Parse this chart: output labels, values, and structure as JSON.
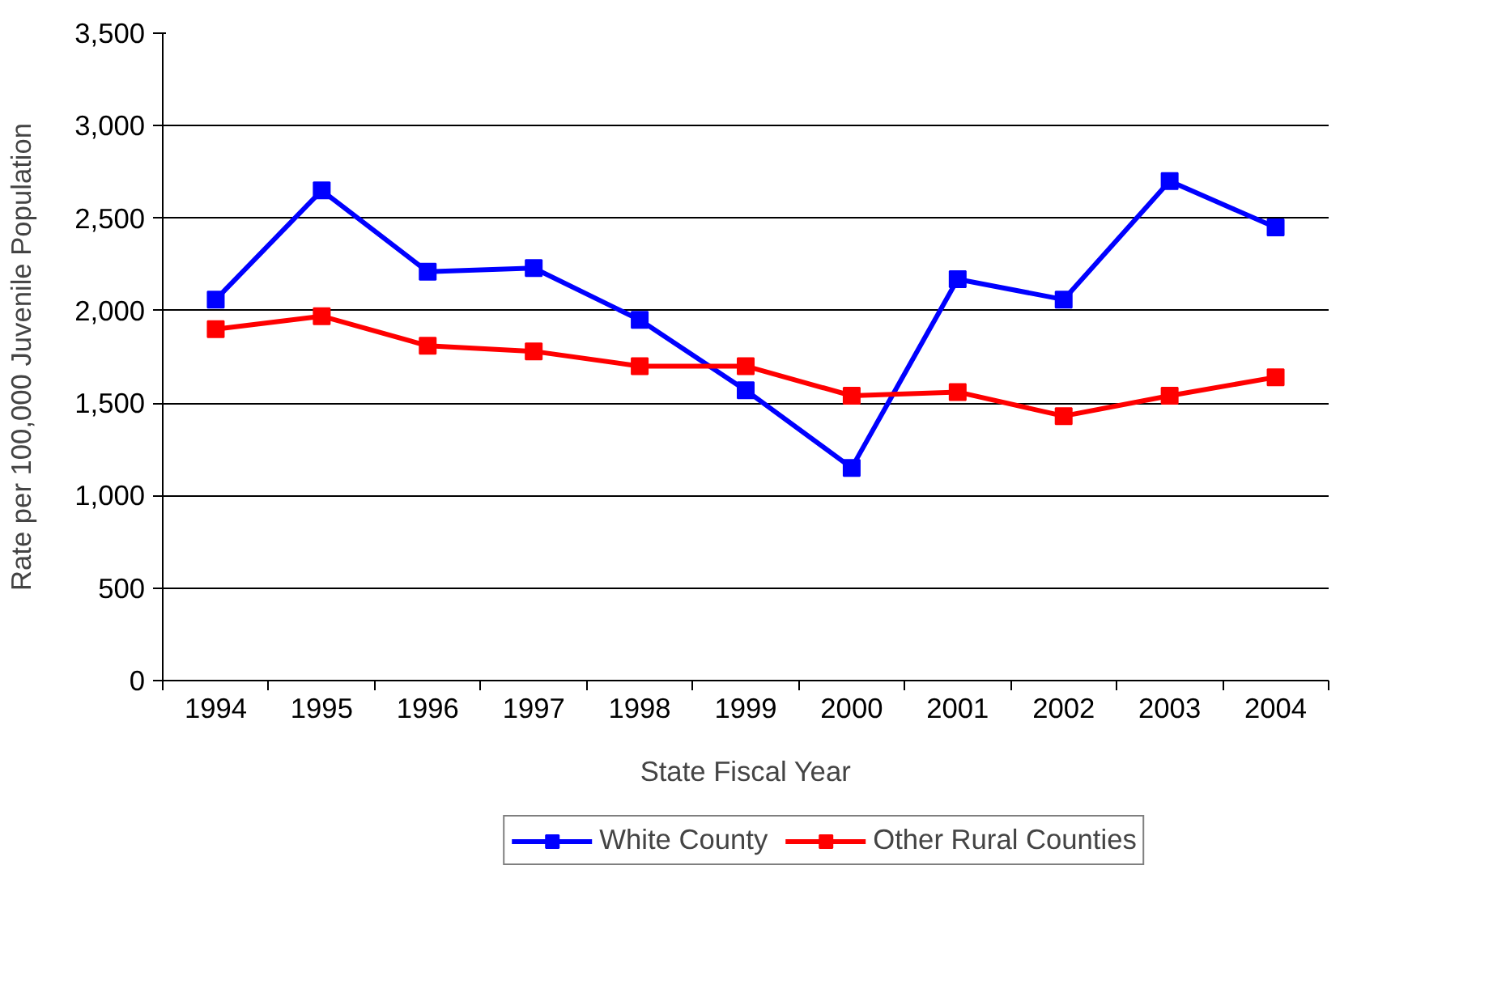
{
  "chart_data": {
    "type": "line",
    "xlabel": "State Fiscal Year",
    "ylabel": "Rate per 100,000 Juvenile Population",
    "categories": [
      "1994",
      "1995",
      "1996",
      "1997",
      "1998",
      "1999",
      "2000",
      "2001",
      "2002",
      "2003",
      "2004"
    ],
    "series": [
      {
        "name": "White County",
        "color": "#0000ff",
        "values": [
          2060,
          2650,
          2210,
          2230,
          1950,
          1570,
          1150,
          2170,
          2060,
          2700,
          2450
        ]
      },
      {
        "name": "Other Rural Counties",
        "color": "#ff0000",
        "values": [
          1900,
          1970,
          1810,
          1780,
          1700,
          1700,
          1540,
          1560,
          1430,
          1540,
          1640
        ]
      }
    ],
    "ylim": [
      0,
      3500
    ],
    "yticks": [
      {
        "value": 0,
        "label": "0"
      },
      {
        "value": 500,
        "label": "500"
      },
      {
        "value": 1000,
        "label": "1,000"
      },
      {
        "value": 1500,
        "label": "1,500"
      },
      {
        "value": 2000,
        "label": "2,000"
      },
      {
        "value": 2500,
        "label": "2,500"
      },
      {
        "value": 3000,
        "label": "3,000"
      },
      {
        "value": 3500,
        "label": "3,500"
      }
    ],
    "grid": "y",
    "legend": "bottom",
    "marker": "square",
    "line_style": "solid"
  }
}
